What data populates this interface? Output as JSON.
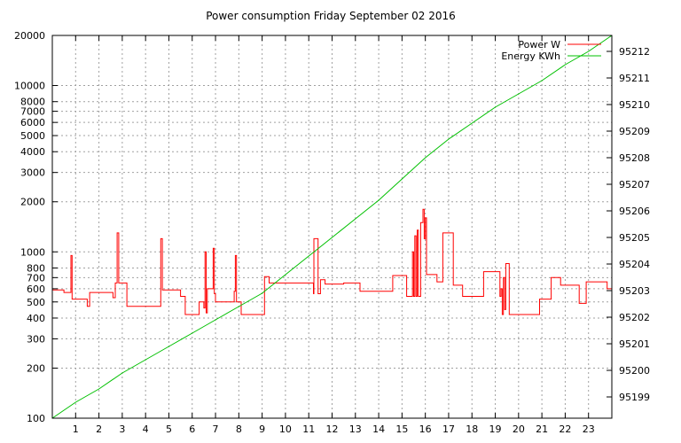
{
  "chart_data": {
    "type": "line",
    "title": "Power consumption Friday September 02 2016",
    "xlabel": "",
    "ylabel": "",
    "x_ticks": [
      1,
      2,
      3,
      4,
      5,
      6,
      7,
      8,
      9,
      10,
      11,
      12,
      13,
      14,
      15,
      16,
      17,
      18,
      19,
      20,
      21,
      22,
      23
    ],
    "xlim": [
      0,
      24
    ],
    "y_scale": "log",
    "ylim": [
      100,
      20000
    ],
    "y_ticks": [
      100,
      200,
      300,
      400,
      500,
      600,
      700,
      800,
      1000,
      2000,
      3000,
      4000,
      5000,
      6000,
      7000,
      8000,
      10000,
      20000
    ],
    "y2lim": [
      95198.2,
      95212.6
    ],
    "y2_ticks": [
      95199,
      95200,
      95201,
      95202,
      95203,
      95204,
      95205,
      95206,
      95207,
      95208,
      95209,
      95210,
      95211,
      95212
    ],
    "grid": true,
    "legend_position": "top-right",
    "series": [
      {
        "name": "Power W",
        "axis": "left",
        "color": "#ff0000",
        "step": true,
        "x": [
          0,
          0.5,
          0.8,
          0.85,
          0.9,
          1.5,
          1.6,
          2.5,
          2.6,
          2.7,
          2.78,
          2.85,
          3.0,
          3.2,
          4.6,
          4.65,
          4.72,
          5.3,
          5.5,
          5.7,
          6.3,
          6.5,
          6.55,
          6.6,
          6.65,
          6.8,
          6.9,
          6.95,
          7.0,
          7.2,
          7.8,
          7.85,
          7.9,
          8.1,
          8.9,
          9.1,
          9.3,
          10.0,
          11.0,
          11.2,
          11.22,
          11.4,
          11.5,
          11.7,
          12.5,
          13.2,
          13.8,
          14.6,
          15.0,
          15.2,
          15.4,
          15.45,
          15.5,
          15.55,
          15.6,
          15.65,
          15.7,
          15.8,
          15.9,
          15.95,
          16.0,
          16.05,
          16.1,
          16.5,
          16.7,
          16.75,
          17.2,
          17.6,
          18.0,
          18.5,
          18.8,
          19.2,
          19.25,
          19.3,
          19.35,
          19.4,
          19.45,
          19.6,
          20.0,
          20.9,
          20.95,
          21.4,
          21.8,
          22.6,
          22.65,
          22.9,
          23.5,
          23.8,
          24.0
        ],
        "values": [
          590,
          570,
          950,
          520,
          520,
          470,
          570,
          570,
          530,
          650,
          1300,
          650,
          650,
          470,
          470,
          1200,
          590,
          590,
          540,
          420,
          500,
          460,
          1000,
          430,
          600,
          600,
          1050,
          560,
          500,
          500,
          580,
          950,
          500,
          420,
          420,
          710,
          650,
          650,
          650,
          560,
          1200,
          560,
          680,
          640,
          650,
          580,
          580,
          720,
          720,
          540,
          540,
          1000,
          540,
          1250,
          540,
          1350,
          540,
          1500,
          1800,
          1200,
          1600,
          730,
          730,
          660,
          660,
          1300,
          630,
          540,
          540,
          760,
          760,
          540,
          600,
          420,
          700,
          450,
          850,
          420,
          420,
          520,
          520,
          700,
          630,
          490,
          490,
          660,
          660,
          600,
          500
        ]
      },
      {
        "name": "Energy KWh",
        "axis": "right",
        "color": "#00c000",
        "step": false,
        "x": [
          0,
          1,
          2,
          3,
          4,
          5,
          6,
          7,
          8,
          9,
          10,
          11,
          12,
          13,
          14,
          15,
          16,
          17,
          18,
          19,
          20,
          21,
          22,
          23,
          24
        ],
        "values": [
          95198.2,
          95198.8,
          95199.3,
          95199.9,
          95200.4,
          95200.9,
          95201.4,
          95201.9,
          95202.4,
          95202.9,
          95203.6,
          95204.3,
          95205.0,
          95205.7,
          95206.4,
          95207.2,
          95208.0,
          95208.7,
          95209.3,
          95209.9,
          95210.4,
          95210.9,
          95211.5,
          95212.0,
          95212.6
        ]
      }
    ]
  }
}
